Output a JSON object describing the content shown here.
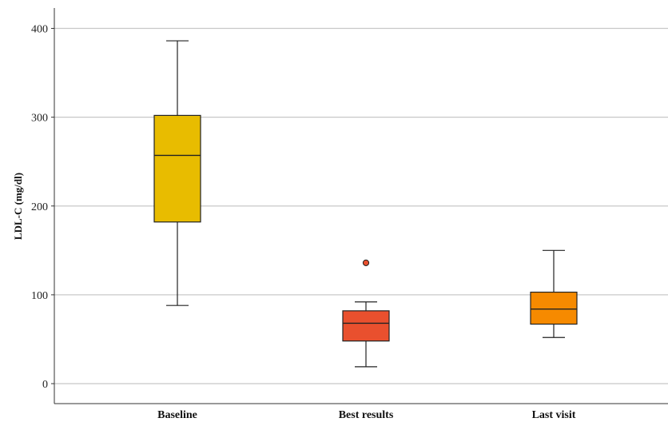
{
  "chart_data": {
    "type": "boxplot",
    "title": "",
    "xlabel": "",
    "ylabel": "LDL-C (mg/dl)",
    "ylim": [
      0,
      400
    ],
    "yticks": [
      0,
      100,
      200,
      300,
      400
    ],
    "grid": "horizontal",
    "categories": [
      "Baseline",
      "Best results",
      "Last visit"
    ],
    "boxes": [
      {
        "category": "Baseline",
        "whisker_low": 88,
        "q1": 182,
        "median": 257,
        "q3": 302,
        "whisker_high": 386,
        "outliers": [],
        "color": "#E8BC00"
      },
      {
        "category": "Best results",
        "whisker_low": 19,
        "q1": 48,
        "median": 68,
        "q3": 82,
        "whisker_high": 92,
        "outliers": [
          136
        ],
        "color": "#E9502E"
      },
      {
        "category": "Last visit",
        "whisker_low": 52,
        "q1": 67,
        "median": 84,
        "q3": 103,
        "whisker_high": 150,
        "outliers": [],
        "color": "#F68A00"
      }
    ]
  }
}
